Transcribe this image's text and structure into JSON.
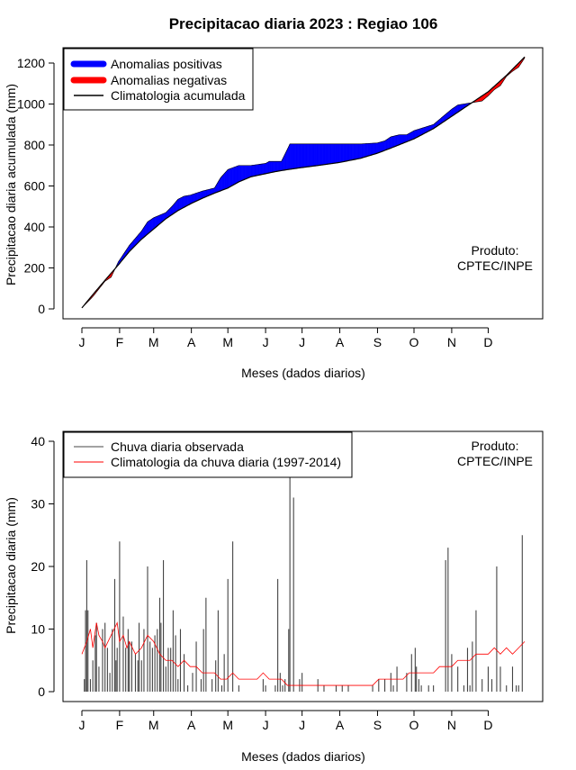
{
  "chart_data": [
    {
      "type": "area",
      "title": "Precipitacao diaria 2023 : Regiao 106",
      "xlabel": "Meses (dados diarios)",
      "ylabel": "Precipitacao diaria acumulada (mm)",
      "x_tick_labels": [
        "J",
        "F",
        "M",
        "A",
        "M",
        "J",
        "J",
        "A",
        "S",
        "O",
        "N",
        "D"
      ],
      "month_start_days": [
        1,
        32,
        60,
        91,
        121,
        152,
        182,
        213,
        244,
        274,
        305,
        335
      ],
      "xlim": [
        1,
        365
      ],
      "ylim": [
        0,
        1200
      ],
      "y_ticks": [
        0,
        200,
        400,
        600,
        800,
        1000,
        1200
      ],
      "legend": [
        {
          "label": "Anomalias positivas",
          "color": "#0000ff"
        },
        {
          "label": "Anomalias negativas",
          "color": "#ff0000"
        },
        {
          "label": "Climatologia acumulada",
          "color": "#000000"
        }
      ],
      "annotation": [
        "Produto:",
        "CPTEC/INPE"
      ],
      "climatology_cumulative": {
        "day": [
          1,
          10,
          20,
          31,
          40,
          50,
          60,
          70,
          80,
          91,
          100,
          110,
          121,
          130,
          140,
          152,
          160,
          170,
          182,
          195,
          213,
          230,
          244,
          255,
          274,
          290,
          305,
          320,
          335,
          350,
          365
        ],
        "value": [
          5,
          70,
          140,
          215,
          280,
          340,
          390,
          440,
          480,
          515,
          540,
          565,
          590,
          620,
          645,
          660,
          670,
          680,
          690,
          700,
          715,
          735,
          760,
          785,
          830,
          880,
          940,
          1000,
          1060,
          1140,
          1230
        ]
      },
      "observed_cumulative": {
        "day": [
          1,
          10,
          20,
          25,
          31,
          40,
          50,
          55,
          60,
          70,
          75,
          80,
          85,
          90,
          100,
          110,
          115,
          121,
          130,
          140,
          152,
          155,
          160,
          165,
          170,
          172,
          175,
          180,
          185,
          190,
          196,
          197,
          213,
          230,
          244,
          250,
          255,
          262,
          268,
          274,
          290,
          300,
          305,
          310,
          320,
          330,
          335,
          340,
          345,
          350,
          355,
          360,
          365
        ],
        "value": [
          5,
          60,
          135,
          155,
          230,
          310,
          380,
          425,
          445,
          470,
          500,
          535,
          550,
          555,
          575,
          590,
          640,
          680,
          700,
          700,
          710,
          720,
          720,
          720,
          780,
          805,
          805,
          805,
          805,
          805,
          805,
          805,
          805,
          805,
          810,
          820,
          840,
          850,
          850,
          870,
          900,
          950,
          975,
          995,
          1005,
          1015,
          1040,
          1070,
          1090,
          1135,
          1160,
          1180,
          1225
        ]
      }
    },
    {
      "type": "bar",
      "title": "",
      "xlabel": "Meses (dados diarios)",
      "ylabel": "Precipitacao diaria (mm)",
      "x_tick_labels": [
        "J",
        "F",
        "M",
        "A",
        "M",
        "J",
        "J",
        "A",
        "S",
        "O",
        "N",
        "D"
      ],
      "month_start_days": [
        1,
        32,
        60,
        91,
        121,
        152,
        182,
        213,
        244,
        274,
        305,
        335
      ],
      "xlim": [
        1,
        365
      ],
      "ylim": [
        0,
        40
      ],
      "y_ticks": [
        0,
        10,
        20,
        30,
        40
      ],
      "legend": [
        {
          "label": "Chuva diaria observada",
          "color": "#444444"
        },
        {
          "label": "Climatologia da chuva diaria (1997-2014)",
          "color": "#ff0000"
        }
      ],
      "annotation": [
        "Produto:",
        "CPTEC/INPE"
      ],
      "observed_daily": {
        "day": [
          3,
          4,
          5,
          6,
          8,
          10,
          12,
          13,
          15,
          18,
          20,
          22,
          24,
          26,
          28,
          29,
          30,
          32,
          35,
          37,
          39,
          40,
          42,
          45,
          47,
          48,
          50,
          52,
          55,
          57,
          59,
          61,
          63,
          65,
          66,
          68,
          70,
          72,
          74,
          76,
          78,
          80,
          82,
          85,
          88,
          92,
          95,
          99,
          101,
          103,
          108,
          111,
          113,
          116,
          118,
          121,
          125,
          130,
          150,
          152,
          160,
          162,
          164,
          166,
          168,
          171,
          172,
          175,
          180,
          182,
          195,
          200,
          210,
          215,
          220,
          240,
          245,
          250,
          255,
          257,
          260,
          268,
          272,
          275,
          276,
          278,
          280,
          286,
          290,
          300,
          302,
          305,
          310,
          315,
          318,
          320,
          322,
          325,
          330,
          335,
          338,
          342,
          345,
          350,
          355,
          358,
          360,
          363
        ],
        "value": [
          2,
          13,
          21,
          13,
          2,
          5,
          9,
          11,
          4,
          10,
          11,
          7,
          3,
          10,
          18,
          5,
          7,
          24,
          12,
          7,
          10,
          8,
          8,
          6,
          5,
          11,
          5,
          10,
          20,
          8,
          7,
          9,
          10,
          15,
          11,
          21,
          4,
          7,
          7,
          13,
          9,
          2,
          10,
          6,
          1,
          3,
          8,
          2,
          10,
          15,
          2,
          5,
          13,
          1,
          6,
          18,
          24,
          1,
          2,
          1,
          1,
          18,
          3,
          1,
          2,
          10,
          35,
          31,
          2,
          3,
          2,
          1,
          1,
          1,
          1,
          1,
          2,
          2,
          3,
          1,
          4,
          3,
          6,
          7,
          4,
          2,
          1,
          1,
          1,
          21,
          23,
          6,
          4,
          1,
          7,
          1,
          8,
          13,
          2,
          4,
          2,
          20,
          4,
          1,
          4,
          1,
          1,
          25
        ]
      },
      "climatology_daily": {
        "day": [
          1,
          5,
          8,
          10,
          13,
          15,
          18,
          20,
          25,
          30,
          32,
          35,
          38,
          40,
          45,
          50,
          55,
          60,
          65,
          70,
          75,
          80,
          85,
          90,
          95,
          100,
          105,
          110,
          115,
          120,
          125,
          130,
          135,
          140,
          145,
          150,
          155,
          160,
          165,
          170,
          175,
          180,
          185,
          190,
          195,
          200,
          205,
          210,
          215,
          220,
          225,
          230,
          235,
          240,
          245,
          250,
          255,
          260,
          265,
          270,
          275,
          280,
          285,
          290,
          295,
          300,
          305,
          310,
          315,
          320,
          325,
          330,
          335,
          340,
          345,
          350,
          355,
          360,
          365
        ],
        "value": [
          6,
          8,
          10,
          7,
          11,
          9,
          8,
          7,
          9,
          11,
          8,
          9,
          7,
          8,
          6,
          7,
          9,
          8,
          6,
          5,
          5,
          4,
          5,
          4,
          4,
          3,
          3,
          3,
          2,
          2,
          3,
          2,
          2,
          2,
          2,
          3,
          2,
          2,
          2,
          1,
          1,
          1,
          1,
          1,
          1,
          1,
          1,
          1,
          1,
          1,
          1,
          1,
          1,
          1,
          2,
          2,
          2,
          2,
          2,
          3,
          3,
          3,
          3,
          3,
          4,
          4,
          4,
          5,
          5,
          5,
          6,
          6,
          6,
          7,
          6,
          7,
          6,
          7,
          8
        ]
      }
    }
  ]
}
